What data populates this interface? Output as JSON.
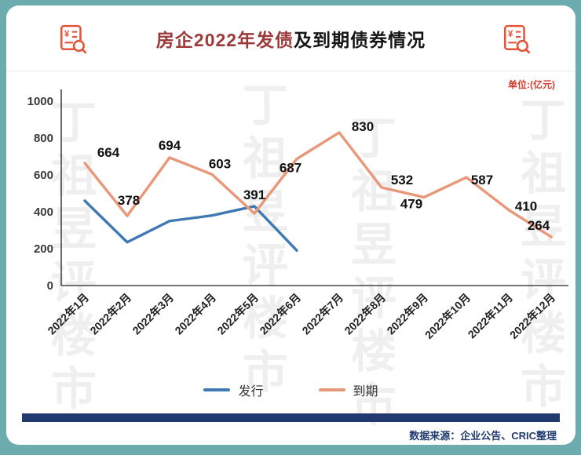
{
  "header": {
    "title_part1": "房企2022年发债",
    "title_part2": "及到期债券情况",
    "unit_label": "单位:(亿元)"
  },
  "chart_data": {
    "type": "line",
    "title": "房企2022年发债及到期债券情况",
    "categories": [
      "2022年1月",
      "2022年2月",
      "2022年3月",
      "2022年4月",
      "2022年5月",
      "2022年6月",
      "2022年7月",
      "2022年8月",
      "2022年9月",
      "2022年10月",
      "2022年11月",
      "2022年12月"
    ],
    "series": [
      {
        "name": "发行",
        "color": "#3e79b4",
        "values": [
          460,
          235,
          350,
          380,
          430,
          190,
          null,
          null,
          null,
          null,
          null,
          null
        ],
        "labeled": false
      },
      {
        "name": "到期",
        "color": "#e89879",
        "values": [
          664,
          378,
          694,
          603,
          391,
          687,
          830,
          532,
          479,
          587,
          410,
          264
        ],
        "labeled": true
      }
    ],
    "ylim": [
      0,
      1000
    ],
    "yticks": [
      0,
      200,
      400,
      600,
      800,
      1000
    ],
    "ylabel": "",
    "xlabel": "",
    "grid": false,
    "legend_position": "bottom"
  },
  "footer": {
    "source": "数据来源：企业公告、CRIC整理"
  },
  "watermark": {
    "text": "丁祖昱评楼市"
  },
  "colors": {
    "accent_teal": "#6cabae",
    "navy_bar": "#203a70",
    "title_red": "#9c3a3a",
    "unit_red": "#d23b2f",
    "icon_orange": "#e2553b",
    "issuance_blue": "#3e79b4",
    "maturity_orange": "#e89879"
  }
}
